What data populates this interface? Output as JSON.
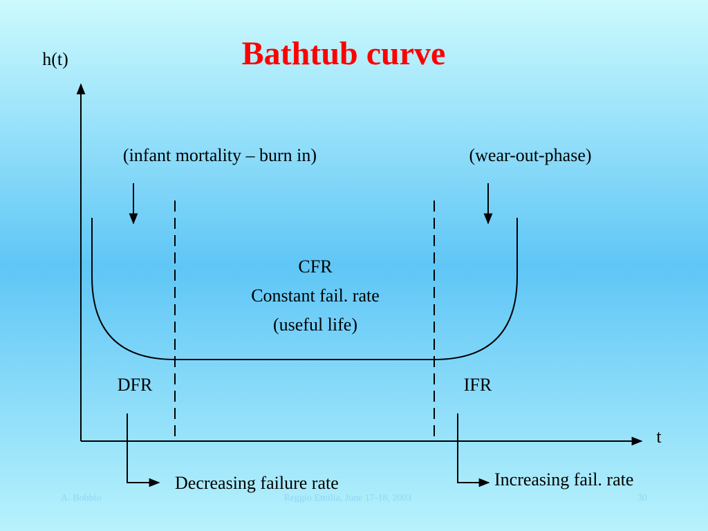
{
  "header": {
    "title": "Bathtub curve"
  },
  "axes": {
    "y_label": "h(t)",
    "x_label": "t"
  },
  "phases": {
    "infant": {
      "caption": "(infant mortality – burn in)",
      "code": "DFR",
      "description": "Decreasing failure rate"
    },
    "useful": {
      "code": "CFR",
      "line1": "Constant fail. rate",
      "line2": "(useful life)"
    },
    "wearout": {
      "caption": "(wear-out-phase)",
      "code": "IFR",
      "description": "Increasing fail. rate"
    }
  },
  "footer": {
    "author": "A. Bobbio",
    "event": "Reggio Emilia,  June 17-18, 2003",
    "page": "30"
  }
}
